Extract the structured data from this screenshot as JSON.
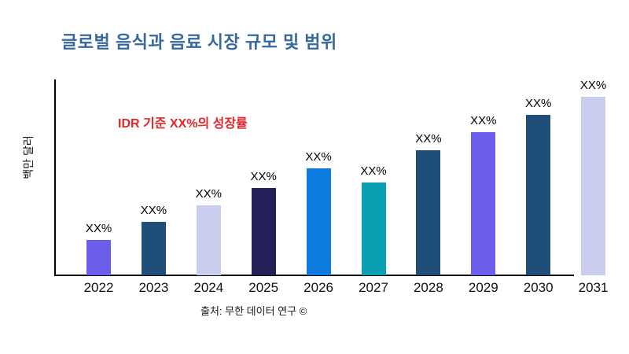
{
  "page": {
    "background": "#ffffff"
  },
  "header": {
    "title": "글로벌 음식과 음료 시장 규모 및 범위",
    "title_color": "#36689C"
  },
  "annotation": {
    "text": "IDR 기준 XX%의 성장률",
    "color": "#E8242A"
  },
  "axes": {
    "y_label": "백만 달러"
  },
  "footer": {
    "source": "출처: 무한 데이터 연구 ©"
  },
  "chart_data": {
    "type": "bar",
    "title": "글로벌 음식과 음료 시장 규모 및 범위",
    "xlabel": "",
    "ylabel": "백만 달러",
    "categories": [
      "2022",
      "2023",
      "2024",
      "2025",
      "2026",
      "2027",
      "2028",
      "2029",
      "2030",
      "2031"
    ],
    "values": [
      20,
      30,
      39,
      49,
      60,
      52,
      70,
      80,
      90,
      100
    ],
    "values_unit": "relative bar height, max=100 (numeric values not shown on chart)",
    "value_labels": [
      "XX%",
      "XX%",
      "XX%",
      "XX%",
      "XX%",
      "XX%",
      "XX%",
      "XX%",
      "XX%",
      "XX%"
    ],
    "bar_colors": [
      "#6B5EEB",
      "#1F4E79",
      "#CBCDEF",
      "#262058",
      "#0E7CDF",
      "#0AA0B1",
      "#1F4E79",
      "#6B5EEB",
      "#1F4E79",
      "#CBCDEF"
    ],
    "annotation": "IDR 기준 XX%의 성장률",
    "source": "출처: 무한 데이터 연구 ©",
    "ylim": [
      0,
      110
    ],
    "grid": false,
    "legend": null
  }
}
